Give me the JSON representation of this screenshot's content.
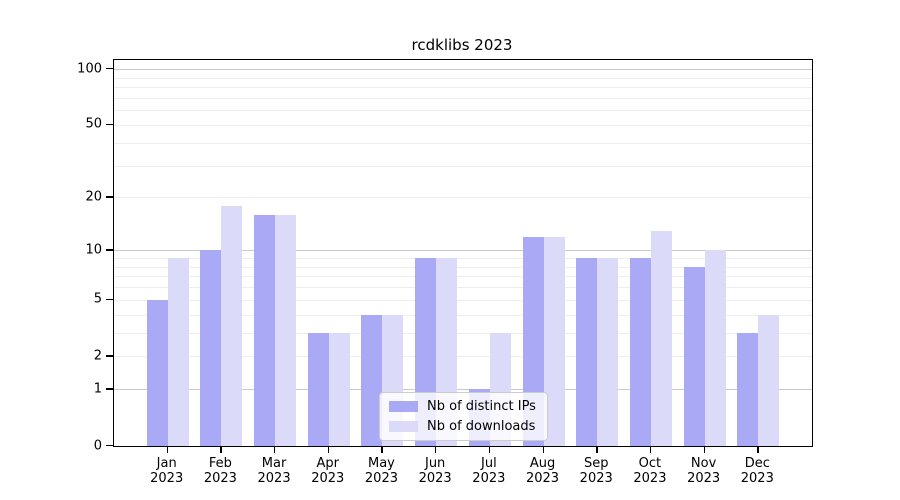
{
  "title": "rcdklibs 2023",
  "chart_data": {
    "type": "bar",
    "title": "rcdklibs 2023",
    "categories": [
      "Jan 2023",
      "Feb 2023",
      "Mar 2023",
      "Apr 2023",
      "May 2023",
      "Jun 2023",
      "Jul 2023",
      "Aug 2023",
      "Sep 2023",
      "Oct 2023",
      "Nov 2023",
      "Dec 2023"
    ],
    "series": [
      {
        "name": "Nb of distinct IPs",
        "color": "#a9a9f5",
        "values": [
          5,
          10,
          16,
          3,
          4,
          9,
          1,
          12,
          9,
          9,
          8,
          3
        ]
      },
      {
        "name": "Nb of downloads",
        "color": "#dbdbf9",
        "values": [
          9,
          18,
          16,
          3,
          4,
          9,
          3,
          12,
          9,
          13,
          10,
          4
        ]
      }
    ],
    "xlabel": "",
    "ylabel": "",
    "yscale": "log1p",
    "yticks": [
      100,
      50,
      20,
      10,
      5,
      2,
      1,
      0
    ],
    "ylim": [
      0,
      112
    ],
    "major_gridlines": [
      1,
      10,
      100
    ],
    "minor_gridlines": [
      2,
      3,
      4,
      5,
      6,
      7,
      8,
      9,
      20,
      30,
      40,
      50,
      60,
      70,
      80,
      90
    ],
    "grid": "horizontal",
    "legend_position": "inside-bottom-center"
  },
  "colors": {
    "major_grid": "#c9c9c9",
    "minor_grid": "#ededed",
    "spine": "#000000",
    "text": "#000000",
    "background": "#ffffff"
  }
}
